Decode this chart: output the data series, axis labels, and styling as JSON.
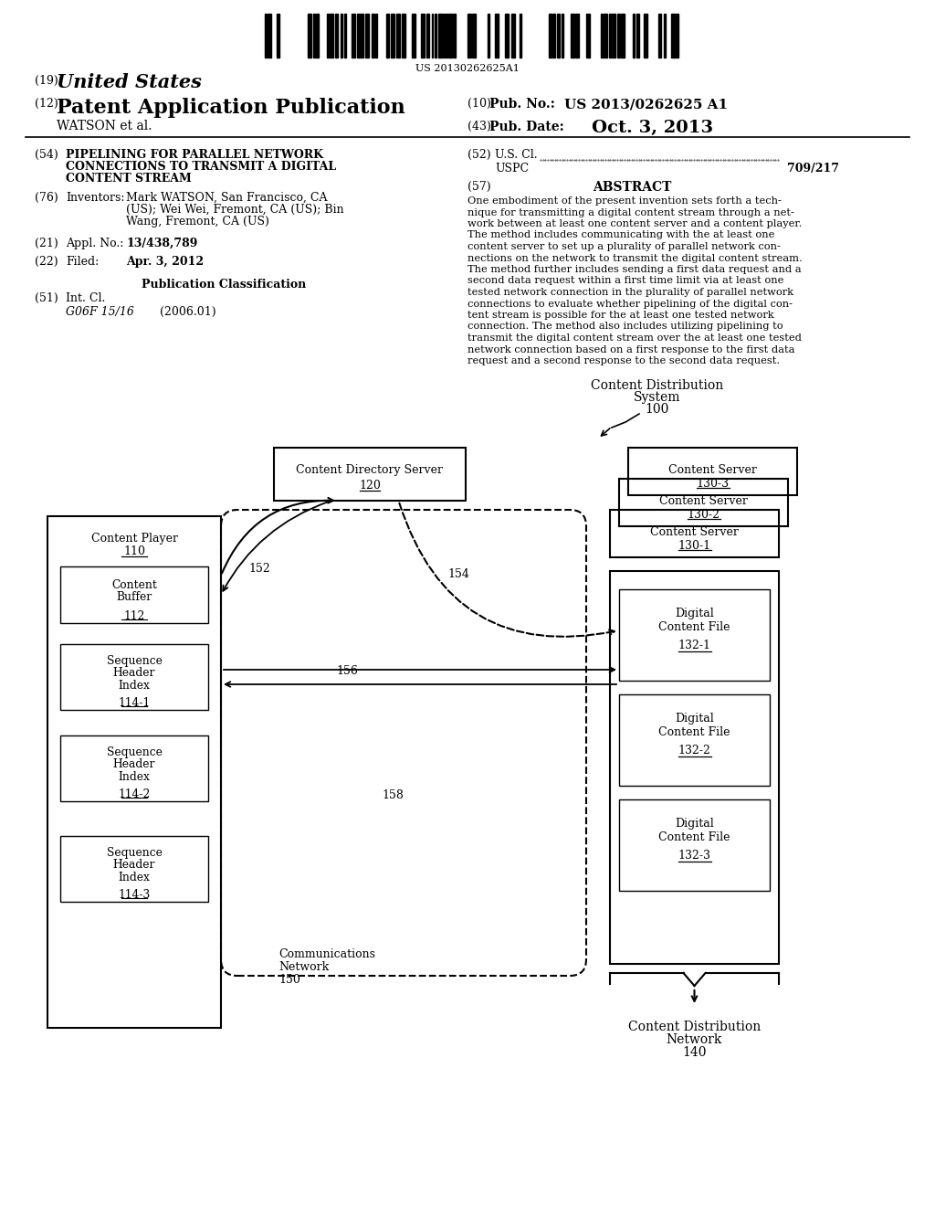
{
  "bg_color": "#ffffff",
  "barcode_text": "US 20130262625A1",
  "header_line1_num": "(19)",
  "header_line1_text": "United States",
  "header_line2_num": "(12)",
  "header_line2_text": "Patent Application Publication",
  "pub_no_num": "(10)",
  "pub_no_label": "Pub. No.:",
  "pub_no_val": "US 2013/0262625 A1",
  "watson": "WATSON et al.",
  "pub_date_num": "(43)",
  "pub_date_label": "Pub. Date:",
  "pub_date_val": "Oct. 3, 2013",
  "f54_num": "(54)",
  "f54_line1": "PIPELINING FOR PARALLEL NETWORK",
  "f54_line2": "CONNECTIONS TO TRANSMIT A DIGITAL",
  "f54_line3": "CONTENT STREAM",
  "f76_num": "(76)",
  "f76_label": "Inventors:",
  "f76_val_line1": "Mark WATSON, San Francisco, CA",
  "f76_val_line2": "(US); Wei Wei, Fremont, CA (US); Bin",
  "f76_val_line3": "Wang, Fremont, CA (US)",
  "f21_num": "(21)",
  "f21_label": "Appl. No.:",
  "f21_val": "13/438,789",
  "f22_num": "(22)",
  "f22_label": "Filed:",
  "f22_val": "Apr. 3, 2012",
  "pub_class_title": "Publication Classification",
  "f51_num": "(51)",
  "f51_label": "Int. Cl.",
  "f51_val1": "G06F 15/16",
  "f51_val2": "(2006.01)",
  "f52_num": "(52)",
  "f52_label": "U.S. Cl.",
  "f52_sub": "USPC",
  "f52_val": "709/217",
  "f57_num": "(57)",
  "f57_title": "ABSTRACT",
  "abstract_lines": [
    "One embodiment of the present invention sets forth a tech-",
    "nique for transmitting a digital content stream through a net-",
    "work between at least one content server and a content player.",
    "The method includes communicating with the at least one",
    "content server to set up a plurality of parallel network con-",
    "nections on the network to transmit the digital content stream.",
    "The method further includes sending a first data request and a",
    "second data request within a first time limit via at least one",
    "tested network connection in the plurality of parallel network",
    "connections to evaluate whether pipelining of the digital con-",
    "tent stream is possible for the at least one tested network",
    "connection. The method also includes utilizing pipelining to",
    "transmit the digital content stream over the at least one tested",
    "network connection based on a first response to the first data",
    "request and a second response to the second data request."
  ],
  "diag_sys_line1": "Content Distribution",
  "diag_sys_line2": "System",
  "diag_sys_line3": "100",
  "cds_line1": "Content Directory Server",
  "cds_line2": "120",
  "cp_title": "Content Player",
  "cp_num": "110",
  "cb_line1": "Content",
  "cb_line2": "Buffer",
  "cb_num": "112",
  "shi_line1": "Sequence",
  "shi_line2": "Header",
  "shi_line3": "Index",
  "shi1_num": "114-1",
  "shi2_num": "114-2",
  "shi3_num": "114-3",
  "cs3_line1": "Content Server",
  "cs3_num": "130-3",
  "cs2_line1": "Content Server",
  "cs2_num": "130-2",
  "cs1_line1": "Content Server",
  "cs1_num": "130-1",
  "dcf_line1": "Digital",
  "dcf_line2": "Content File",
  "dcf1_num": "132-1",
  "dcf2_num": "132-2",
  "dcf3_num": "132-3",
  "lbl_152": "152",
  "lbl_154": "154",
  "lbl_156": "156",
  "lbl_158": "158",
  "comm_line1": "Communications",
  "comm_line2": "Network",
  "comm_num": "150",
  "cdn_line1": "Content Distribution",
  "cdn_line2": "Network",
  "cdn_num": "140"
}
